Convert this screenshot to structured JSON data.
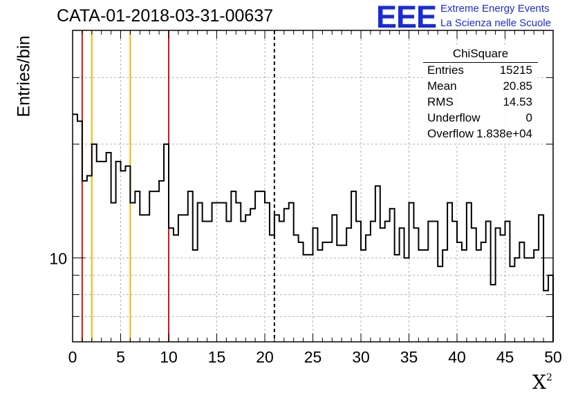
{
  "header": {
    "title": "CATA-01-2018-03-31-00637",
    "logo_text": "EEE",
    "org_line1": "Extreme Energy Events",
    "org_line2": "La Scienza nelle Scuole"
  },
  "stats_box": {
    "title": "ChiSquare",
    "rows": [
      {
        "key": "Entries",
        "value": "15215"
      },
      {
        "key": "Mean",
        "value": "20.85"
      },
      {
        "key": "RMS",
        "value": "14.53"
      },
      {
        "key": "Underflow",
        "value": "0"
      },
      {
        "key": "Overflow",
        "value": "1.838e+04"
      }
    ]
  },
  "colors": {
    "red_line": "#e01010",
    "yellow_line": "#f5b800",
    "histogram": "#000000",
    "logo_blue": "#1a2bd6"
  },
  "chart_data": {
    "type": "histogram",
    "title": "CATA-01-2018-03-31-00637",
    "xlabel": "X²",
    "ylabel": "Entries/bin",
    "xlim": [
      0,
      50
    ],
    "ylim": [
      6,
      40
    ],
    "yscale": "log",
    "grid": true,
    "bin_width": 0.5,
    "x_tick_labels": [
      "0",
      "5",
      "10",
      "15",
      "20",
      "25",
      "30",
      "35",
      "40",
      "45",
      "50"
    ],
    "y_tick_labels": [
      "10"
    ],
    "bin_values": [
      24,
      23,
      16,
      16.5,
      20,
      18,
      18,
      19,
      14,
      18,
      17,
      17.5,
      14,
      15,
      13,
      13,
      15,
      15,
      16,
      20,
      12,
      11.5,
      13,
      13,
      15,
      10.5,
      14,
      12.5,
      12.5,
      14,
      14,
      14,
      12.5,
      15,
      14,
      12.5,
      13,
      13.5,
      15,
      15,
      14,
      11.5,
      13,
      12.5,
      13.5,
      14,
      11.5,
      11,
      10.2,
      10.2,
      12,
      10.5,
      11,
      11,
      13,
      10.8,
      10.8,
      12,
      15,
      12.5,
      10.5,
      11.5,
      12.5,
      15.5,
      12,
      12.5,
      13.5,
      10.2,
      12,
      10,
      14,
      12,
      10.5,
      10.5,
      12.5,
      12.5,
      9.5,
      10.5,
      14,
      12.5,
      11,
      10.5,
      14,
      12,
      10.5,
      11,
      12.5,
      8.5,
      12,
      11.5,
      12.5,
      9.5,
      10,
      11,
      10,
      10,
      10.5,
      13,
      8.2,
      9
    ],
    "vertical_lines": [
      {
        "x": 1,
        "style": "solid",
        "color": "red"
      },
      {
        "x": 2,
        "style": "solid",
        "color": "yellow"
      },
      {
        "x": 6,
        "style": "solid",
        "color": "yellow"
      },
      {
        "x": 10,
        "style": "solid",
        "color": "red"
      },
      {
        "x": 21,
        "style": "dashed",
        "color": "black"
      }
    ]
  }
}
